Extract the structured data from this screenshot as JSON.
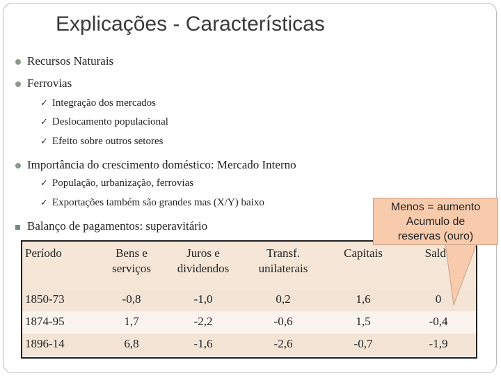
{
  "title": "Explicações - Características",
  "bullets": [
    {
      "text": "Recursos Naturais"
    },
    {
      "text": "Ferrovias",
      "items": [
        "Integração dos mercados",
        "Deslocamento populacional",
        "Efeito sobre outros setores"
      ]
    },
    {
      "text": "Importância do crescimento doméstico: Mercado Interno",
      "items": [
        "População, urbanização, ferrovias",
        "Exportações também são grandes mas (X/Y) baixo"
      ]
    },
    {
      "text": "Balanço de pagamentos: superavitário"
    }
  ],
  "table": {
    "header": [
      "Período",
      "Bens e serviços",
      "Juros e dividendos",
      "Transf. unilaterais",
      "Capitais",
      "Saldo"
    ],
    "rows": [
      [
        "1850-73",
        "-0,8",
        "-1,0",
        "0,2",
        "1,6",
        "0"
      ],
      [
        "1874-95",
        "1,7",
        "-2,2",
        "-0,6",
        "1,5",
        "-0,4"
      ],
      [
        "1896-14",
        "6,8",
        "-1,6",
        "-2,6",
        "-0,7",
        "-1,9"
      ]
    ]
  },
  "callout": [
    "Menos = aumento",
    "Acumulo de",
    "reservas (ouro)"
  ]
}
